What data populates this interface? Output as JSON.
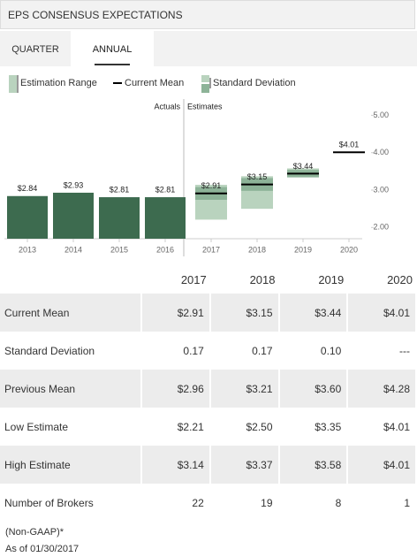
{
  "header": {
    "title": "EPS CONSENSUS EXPECTATIONS"
  },
  "tabs": [
    "QUARTER",
    "ANNUAL"
  ],
  "chart_data": {
    "type": "bar",
    "annotations": [
      "Actuals",
      "Estimates"
    ],
    "categories": [
      "2013",
      "2014",
      "2015",
      "2016",
      "2017",
      "2018",
      "2019",
      "2020"
    ],
    "actuals": {
      "color": "#3d6b4f",
      "values": [
        2.84,
        2.93,
        2.81,
        2.81,
        null,
        null,
        null,
        null
      ],
      "value_labels": [
        "$2.84",
        "$2.93",
        "$2.81",
        "$2.81",
        null,
        null,
        null,
        null
      ]
    },
    "series": [
      {
        "name": "Estimation Range",
        "color": "#b9d3be",
        "low": [
          null,
          null,
          null,
          null,
          2.21,
          2.5,
          3.35,
          4.01
        ],
        "high": [
          null,
          null,
          null,
          null,
          3.14,
          3.37,
          3.58,
          4.01
        ]
      },
      {
        "name": "Current Mean",
        "color": "#000000",
        "values": [
          null,
          null,
          null,
          null,
          2.91,
          3.15,
          3.44,
          4.01
        ],
        "value_labels": [
          null,
          null,
          null,
          null,
          "$2.91",
          "$3.15",
          "$3.44",
          "$4.01"
        ]
      },
      {
        "name": "Standard Deviation",
        "color": "#8db398",
        "values": [
          null,
          null,
          null,
          null,
          0.17,
          0.17,
          0.1,
          null
        ]
      }
    ],
    "ylim": [
      1.7,
      5.3
    ],
    "yticks": [
      {
        "value": 2,
        "label": "2.00"
      },
      {
        "value": 3,
        "label": "3.00"
      },
      {
        "value": 4,
        "label": "4.00"
      },
      {
        "value": 5,
        "label": "5.00"
      }
    ]
  },
  "table": {
    "header": [
      "2017",
      "2018",
      "2019",
      "2020"
    ],
    "rows": [
      [
        "Current Mean",
        "$2.91",
        "$3.15",
        "$3.44",
        "$4.01"
      ],
      [
        "Standard Deviation",
        "0.17",
        "0.17",
        "0.10",
        "---"
      ],
      [
        "Previous Mean",
        "$2.96",
        "$3.21",
        "$3.60",
        "$4.28"
      ],
      [
        "Low Estimate",
        "$2.21",
        "$2.50",
        "$3.35",
        "$4.01"
      ],
      [
        "High Estimate",
        "$3.14",
        "$3.37",
        "$3.58",
        "$4.01"
      ],
      [
        "Number of Brokers",
        "22",
        "19",
        "8",
        "1"
      ]
    ]
  },
  "footer": {
    "note": "(Non-GAAP)*",
    "date": "As of 01/30/2017"
  }
}
